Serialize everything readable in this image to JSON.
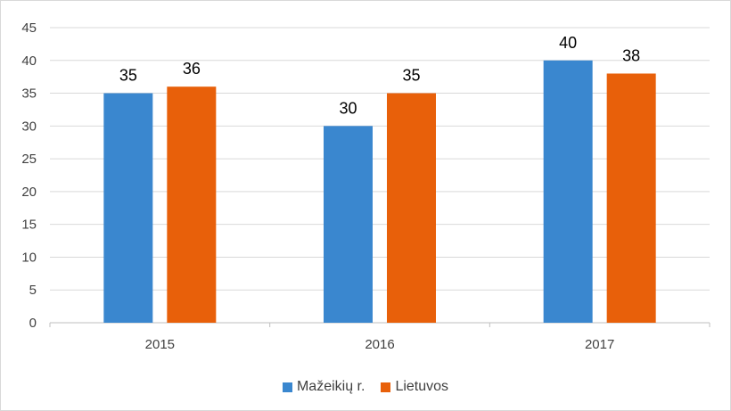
{
  "chart_data": {
    "type": "bar",
    "title": "",
    "xlabel": "",
    "ylabel": "",
    "categories": [
      "2015",
      "2016",
      "2017"
    ],
    "series": [
      {
        "name": "Mažeikių r.",
        "color": "#3A87CF",
        "values": [
          35,
          30,
          40
        ]
      },
      {
        "name": "Lietuvos",
        "color": "#E8600A",
        "values": [
          36,
          35,
          38
        ]
      }
    ],
    "ylim": [
      0,
      45
    ],
    "yticks": [
      0,
      5,
      10,
      15,
      20,
      25,
      30,
      35,
      40,
      45
    ],
    "grid": true,
    "legend_position": "bottom",
    "data_labels": true
  }
}
